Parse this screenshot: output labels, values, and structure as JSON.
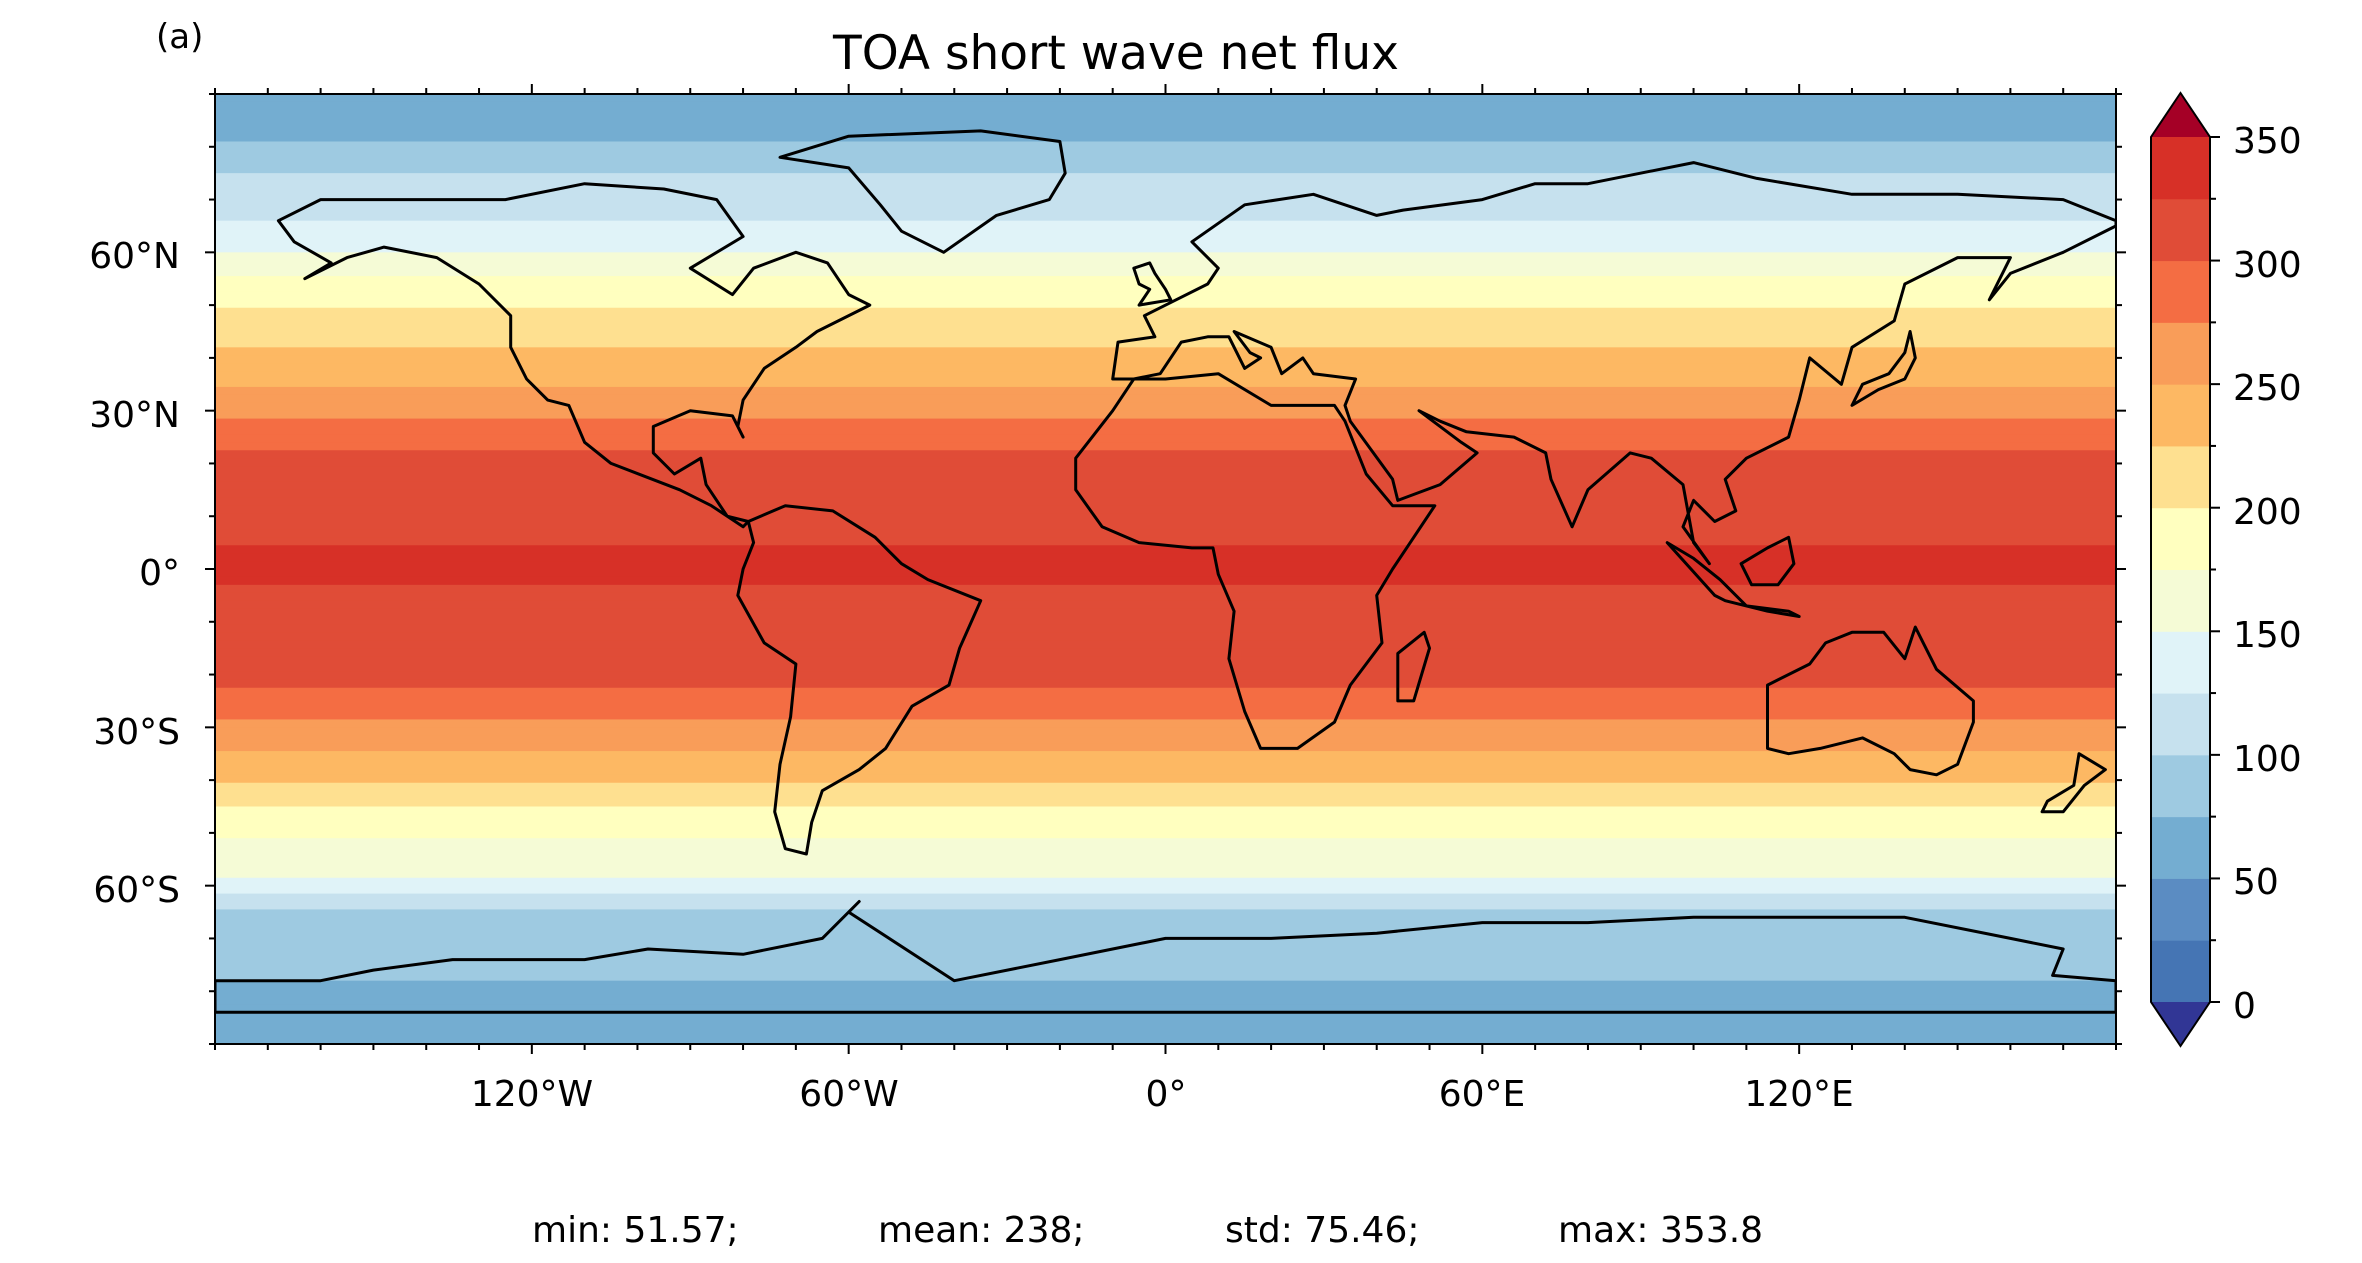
{
  "panel_label": "(a)",
  "title": "TOA short wave net flux",
  "lat_ticks": [
    "60°N",
    "30°N",
    "0°",
    "30°S",
    "60°S"
  ],
  "lon_ticks": [
    "120°W",
    "60°W",
    "0°",
    "60°E",
    "120°E"
  ],
  "colorbar": {
    "ticks": [
      "350",
      "300",
      "250",
      "200",
      "150",
      "100",
      "50",
      "0"
    ],
    "levels": [
      0,
      25,
      50,
      75,
      100,
      125,
      150,
      175,
      200,
      225,
      250,
      275,
      300,
      325,
      350
    ],
    "extend": "both",
    "colors": [
      "#313695",
      "#4575b4",
      "#5b8cc2",
      "#74add1",
      "#9ecae1",
      "#c6e1ee",
      "#e0f3f8",
      "#f5fbd6",
      "#ffffbf",
      "#fee090",
      "#fdb863",
      "#f99d59",
      "#f46d43",
      "#e04c37",
      "#d73027",
      "#c41f27",
      "#a50026"
    ],
    "cmap": "RdYlBu_r"
  },
  "stats": {
    "min": "min: 51.57;",
    "mean": "mean: 238;",
    "std": "std: 75.46;",
    "max": "max: 353.8"
  },
  "map": {
    "projection": "PlateCarree",
    "lon_range": [
      -180,
      180
    ],
    "lat_range": [
      -90,
      90
    ],
    "coastlines": true
  }
}
